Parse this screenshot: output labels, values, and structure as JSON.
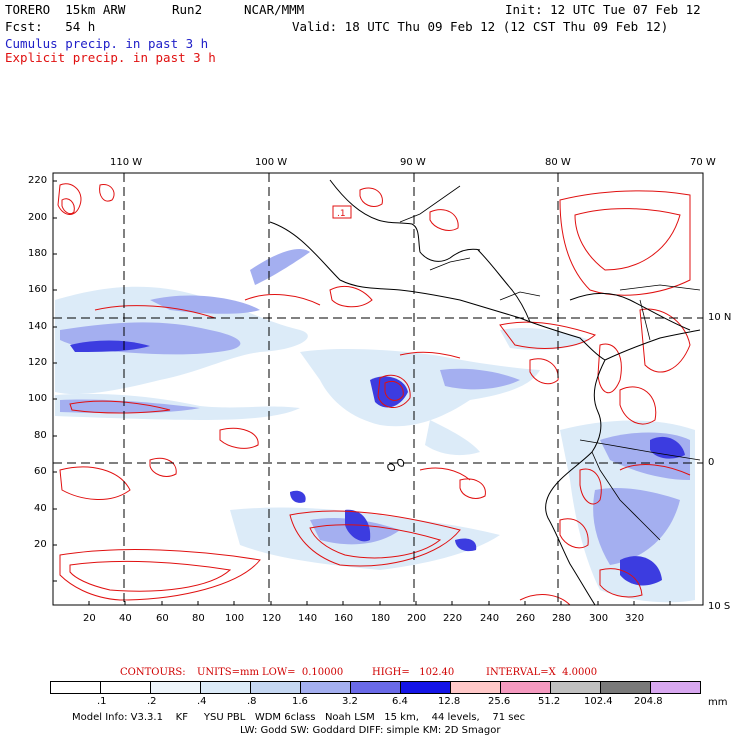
{
  "header": {
    "model_name": "TORERO  15km ARW",
    "run": "Run2",
    "institution": "NCAR/MMM",
    "init": "Init: 12 UTC Tue 07 Feb 12",
    "forecast": "Fcst:   54 h",
    "valid": "Valid: 18 UTC Thu 09 Feb 12 (12 CST Thu 09 Feb 12)",
    "field_cumulus": "Cumulus precip. in past 3 h",
    "field_explicit": "Explicit precip. in past 3 h"
  },
  "map": {
    "lon_labels": [
      "110 W",
      "100 W",
      "90 W",
      "80 W",
      "70 W"
    ],
    "lat_labels": [
      "10 N",
      "0",
      "10 S"
    ],
    "y_grid_labels": [
      "220",
      "200",
      "180",
      "160",
      "140",
      "120",
      "100",
      "80",
      "60",
      "40",
      "20"
    ],
    "x_grid_labels": [
      "20",
      "40",
      "60",
      "80",
      "100",
      "120",
      "140",
      "160",
      "180",
      "200",
      "220",
      "240",
      "260",
      "280",
      "300",
      "320"
    ],
    "box_label": ".1"
  },
  "contour_info": {
    "contours": "CONTOURS:",
    "units": "UNITS=mm",
    "low": "LOW=  0.10000",
    "high": "HIGH=   102.40",
    "interval": "INTERVAL=X  4.0000"
  },
  "legend": {
    "values": [
      ".1",
      ".2",
      ".4",
      ".8",
      "1.6",
      "3.2",
      "6.4",
      "12.8",
      "25.6",
      "51.2",
      "102.4",
      "204.8"
    ],
    "colors": [
      "#ffffff",
      "#ffffff",
      "#eef5fb",
      "#dcebf8",
      "#c5d7f2",
      "#a4aff0",
      "#6a6ae8",
      "#1414e6",
      "#ffc8c8",
      "#f59ac0",
      "#c0c0c0",
      "#7a7a7a",
      "#d8a8f0"
    ],
    "unit": "mm"
  },
  "footer": {
    "line1": "Model Info: V3.3.1    KF     YSU PBL   WDM 6class   Noah LSM   15 km,    44 levels,    71 sec",
    "line2": "LW: Godd SW: Goddard DIFF: simple KM: 2D Smagor"
  }
}
